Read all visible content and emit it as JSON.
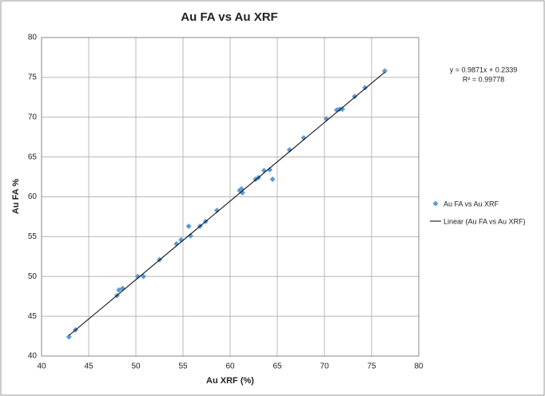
{
  "chart_data": {
    "type": "scatter",
    "title": "Au FA vs Au XRF",
    "x_label": "Au XRF  (%)",
    "y_label": "Au FA %",
    "xlim": [
      40,
      80
    ],
    "xticks": [
      40,
      45,
      50,
      55,
      60,
      65,
      70,
      75,
      80
    ],
    "ylim": [
      40,
      80
    ],
    "yticks": [
      40,
      45,
      50,
      55,
      60,
      65,
      70,
      75,
      80
    ],
    "grid": true,
    "legend": "right",
    "series": [
      {
        "name": "Au FA vs Au XRF",
        "color": "#5b9bd5",
        "x": [
          42.9,
          43.6,
          48.0,
          48.2,
          48.6,
          50.2,
          50.8,
          52.5,
          54.3,
          54.8,
          55.6,
          55.8,
          56.8,
          57.4,
          58.6,
          61.0,
          61.2,
          61.3,
          62.7,
          63.0,
          63.6,
          64.2,
          64.5,
          66.3,
          67.8,
          70.2,
          71.3,
          71.6,
          71.9,
          73.2,
          74.3,
          76.4
        ],
        "values": [
          42.4,
          43.3,
          47.6,
          48.3,
          48.5,
          50.0,
          50.0,
          52.1,
          54.1,
          54.6,
          56.3,
          55.1,
          56.3,
          56.9,
          58.3,
          60.8,
          61.0,
          60.5,
          62.2,
          62.4,
          63.3,
          63.4,
          62.2,
          65.9,
          67.4,
          69.8,
          70.9,
          71.0,
          71.0,
          72.6,
          73.7,
          75.8
        ]
      }
    ],
    "trendline": {
      "name": "Linear (Au FA vs Au XRF)",
      "color": "#000000",
      "slope": 0.9871,
      "intercept": 0.2339,
      "equation": "y = 0.9871x + 0.2339",
      "r2_label": "R² = 0.99778"
    }
  }
}
